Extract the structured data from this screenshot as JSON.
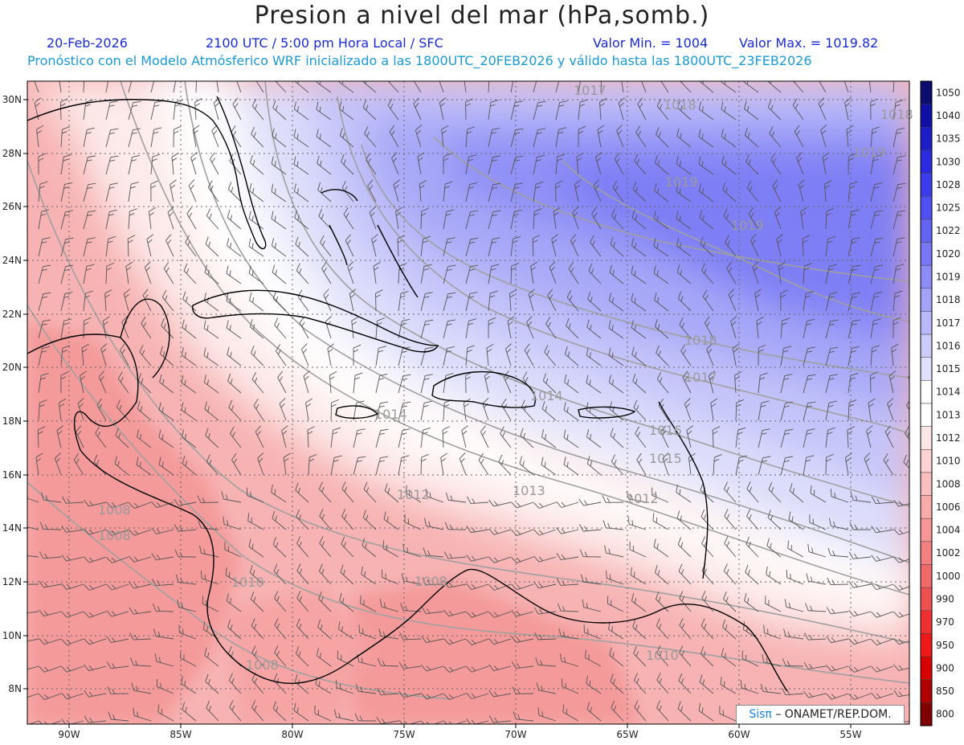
{
  "header": {
    "title": "Presion a nivel del mar (hPa,somb.)",
    "date": "20-Feb-2026",
    "time": "2100 UTC / 5:00 pm Hora Local / SFC",
    "min": "Valor Min. = 1004",
    "max": "Valor Max. = 1019.82",
    "model_info": "Pronóstico con el Modelo Atmósferico WRF inicializado a las 1800UTC_20FEB2026 y válido hasta las  1800UTC_23FEB2026"
  },
  "map": {
    "lon_ticks": [
      "90W",
      "85W",
      "80W",
      "75W",
      "70W",
      "65W",
      "60W",
      "55W"
    ],
    "lat_ticks": [
      "30N",
      "28N",
      "26N",
      "24N",
      "22N",
      "20N",
      "18N",
      "16N",
      "14N",
      "12N",
      "10N",
      "8N"
    ],
    "contour_labels": [
      {
        "text": "1017"
      },
      {
        "text": "1018"
      },
      {
        "text": "1018"
      },
      {
        "text": "1019"
      },
      {
        "text": "1019"
      },
      {
        "text": "1019"
      },
      {
        "text": "1018"
      },
      {
        "text": "1017"
      },
      {
        "text": "1016"
      },
      {
        "text": "1015"
      },
      {
        "text": "1014"
      },
      {
        "text": "1014"
      },
      {
        "text": "1013"
      },
      {
        "text": "1012"
      },
      {
        "text": "1010"
      },
      {
        "text": "1008"
      },
      {
        "text": "1008"
      },
      {
        "text": "1008"
      },
      {
        "text": "1010"
      },
      {
        "text": "1008"
      },
      {
        "text": "1012"
      }
    ]
  },
  "colorbar": {
    "labels": [
      "1050",
      "1040",
      "1035",
      "1030",
      "1028",
      "1025",
      "1022",
      "1020",
      "1019",
      "1018",
      "1017",
      "1016",
      "1015",
      "1014",
      "1013",
      "1012",
      "1010",
      "1008",
      "1006",
      "1004",
      "1002",
      "1000",
      "990",
      "970",
      "950",
      "900",
      "850",
      "800"
    ],
    "colors": [
      "#0c0c6e",
      "#1010a6",
      "#1c1cc8",
      "#2a2ae0",
      "#3c3cec",
      "#5050f2",
      "#6464f4",
      "#7878f6",
      "#8c8cf8",
      "#a2a2f8",
      "#b8b8fa",
      "#ccccfb",
      "#e0e0fc",
      "#ffffff",
      "#ffffff",
      "#fde6e6",
      "#fcd2d2",
      "#fbbebe",
      "#f9aaaa",
      "#f79696",
      "#f48080",
      "#f06a6a",
      "#ee5050",
      "#f03030",
      "#f01818",
      "#d80000",
      "#b00000",
      "#800000"
    ]
  },
  "credit": {
    "brand": "Sisπ",
    "text": "– ONAMET/REP.DOM."
  },
  "colors": {
    "high": "#7878f6",
    "neutral": "#ffffff",
    "low": "#f7a8a8",
    "coast": "#000000",
    "contour": "#9a9a9a",
    "barb": "#555555"
  }
}
